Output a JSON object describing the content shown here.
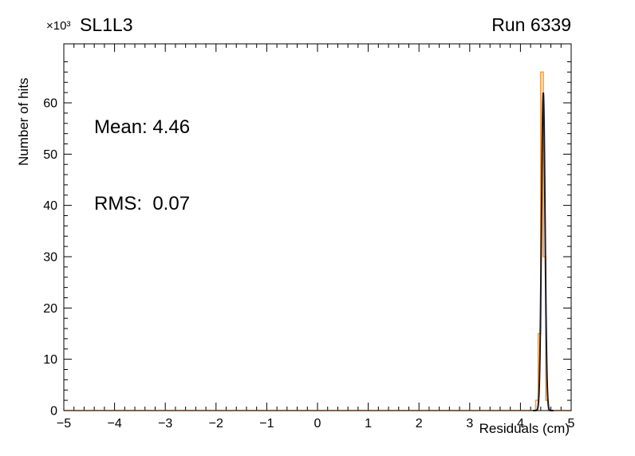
{
  "header": {
    "multiplier": "×10³",
    "title": "SL1L3",
    "run": "Run 6339"
  },
  "stats": {
    "mean_label": "Mean: 4.46",
    "rms_label": "RMS:  0.07"
  },
  "axes": {
    "x_title": "Residuals (cm)",
    "y_title": "Number of hits"
  },
  "chart_data": {
    "type": "bar",
    "title": "SL1L3",
    "annotation": "Run 6339",
    "xlabel": "Residuals (cm)",
    "ylabel": "Number of hits",
    "y_unit_multiplier": "×10³",
    "xlim": [
      -5,
      5
    ],
    "ylim": [
      0,
      71.5
    ],
    "x_ticks": [
      -5,
      -4,
      -3,
      -2,
      -1,
      0,
      1,
      2,
      3,
      4,
      5
    ],
    "x_minor_step": 0.2,
    "y_ticks": [
      0,
      10,
      20,
      30,
      40,
      50,
      60
    ],
    "y_minor_step": 2,
    "grid": false,
    "stats": {
      "mean": 4.46,
      "rms": 0.07
    },
    "bin_width": 0.05,
    "series": [
      {
        "name": "residuals-histogram",
        "type": "step",
        "color": "#ff9933",
        "units": "10^3 hits",
        "bins": [
          {
            "x": 4.3,
            "y": 2
          },
          {
            "x": 4.35,
            "y": 15
          },
          {
            "x": 4.4,
            "y": 66
          },
          {
            "x": 4.45,
            "y": 30
          },
          {
            "x": 4.5,
            "y": 2
          }
        ]
      },
      {
        "name": "gaussian-fit",
        "type": "gaussian",
        "color": "#1a1a28",
        "mean": 4.45,
        "sigma": 0.035,
        "amplitude": 62,
        "range": [
          4.25,
          4.65
        ]
      }
    ]
  }
}
